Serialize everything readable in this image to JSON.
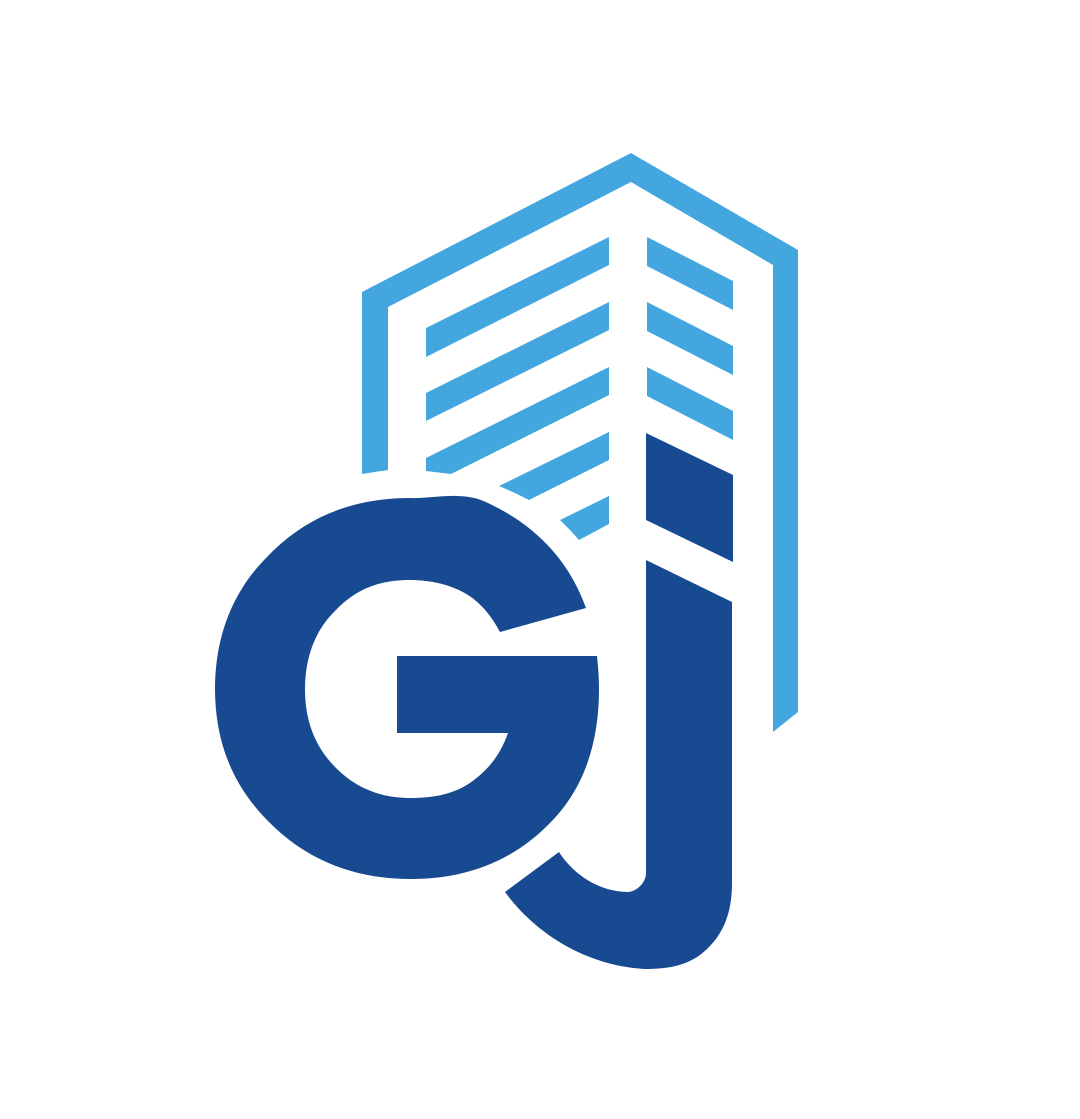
{
  "logo": {
    "monogram": "GJ",
    "colors": {
      "light_blue": "#43a6df",
      "dark_blue": "#174a91",
      "background": "#ffffff"
    },
    "icons": [
      "building-icon",
      "letter-g-icon",
      "letter-j-icon"
    ]
  }
}
